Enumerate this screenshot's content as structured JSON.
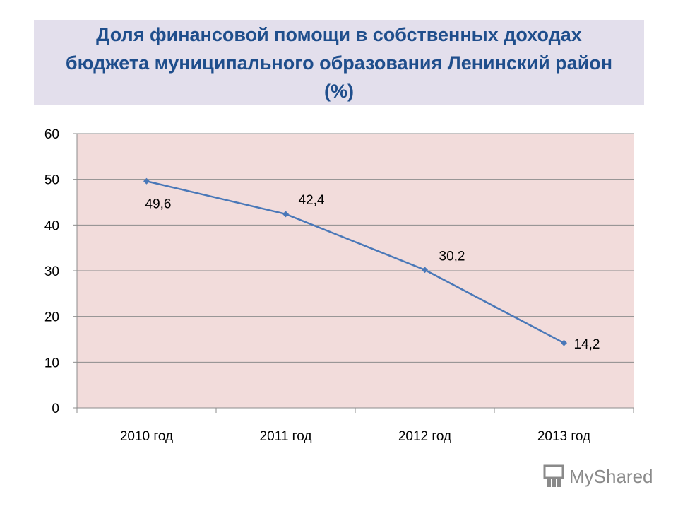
{
  "slide": {
    "title": "Доля финансовой помощи в собственных доходах бюджета муниципального образования Ленинский район (%)"
  },
  "chart_data": {
    "type": "line",
    "title": "Доля финансовой помощи в собственных доходах бюджета муниципального образования Ленинский район (%)",
    "categories": [
      "2010 год",
      "2011 год",
      "2012 год",
      "2013 год"
    ],
    "values": [
      49.6,
      42.4,
      30.2,
      14.2
    ],
    "data_labels": [
      "49,6",
      "42,4",
      "30,2",
      "14,2"
    ],
    "yticks": [
      "0",
      "10",
      "20",
      "30",
      "40",
      "50",
      "60"
    ],
    "ylim": [
      0,
      60
    ],
    "ystep": 10,
    "grid": true,
    "legend": "none",
    "colors": {
      "line": "#4a78b8",
      "plot_bg": "#f2dcdb",
      "grid": "#8c8c8c"
    }
  },
  "watermark": {
    "text": "MyShared",
    "icon": "classroom-board-icon"
  }
}
